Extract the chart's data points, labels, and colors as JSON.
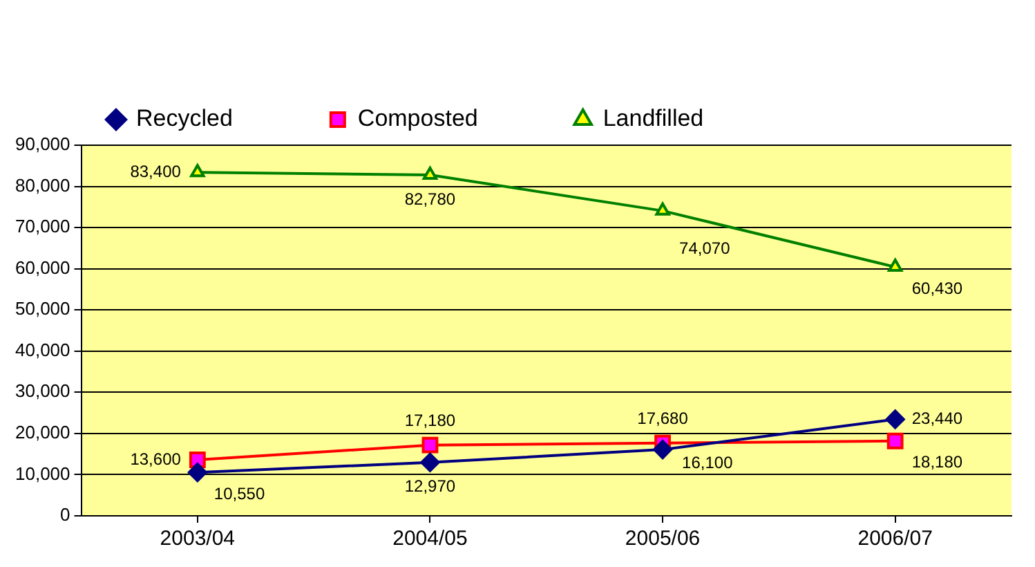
{
  "chart_data": {
    "type": "line",
    "categories": [
      "2003/04",
      "2004/05",
      "2005/06",
      "2006/07"
    ],
    "series": [
      {
        "name": "Recycled",
        "color": "#000080",
        "marker": "diamond",
        "values": [
          10550,
          12970,
          16100,
          23440
        ],
        "value_labels": [
          "10,550",
          "12,970",
          "16,100",
          "23,440"
        ]
      },
      {
        "name": "Composted",
        "color": "#ff0000",
        "marker": "square",
        "values": [
          13600,
          17180,
          17680,
          18180
        ],
        "value_labels": [
          "13,600",
          "17,180",
          "17,680",
          "18,180"
        ]
      },
      {
        "name": "Landfilled",
        "color": "#008000",
        "marker": "triangle",
        "values": [
          83400,
          82780,
          74070,
          60430
        ],
        "value_labels": [
          "83,400",
          "82,780",
          "74,070",
          "60,430"
        ]
      }
    ],
    "ylim": [
      0,
      90000
    ],
    "yticks": [
      {
        "value": 0,
        "label": "0"
      },
      {
        "value": 10000,
        "label": "10,000"
      },
      {
        "value": 20000,
        "label": "20,000"
      },
      {
        "value": 30000,
        "label": "30,000"
      },
      {
        "value": 40000,
        "label": "40,000"
      },
      {
        "value": 50000,
        "label": "50,000"
      },
      {
        "value": 60000,
        "label": "60,000"
      },
      {
        "value": 70000,
        "label": "70,000"
      },
      {
        "value": 80000,
        "label": "80,000"
      },
      {
        "value": 90000,
        "label": "90,000"
      }
    ],
    "grid": "y",
    "legend": "top left"
  }
}
